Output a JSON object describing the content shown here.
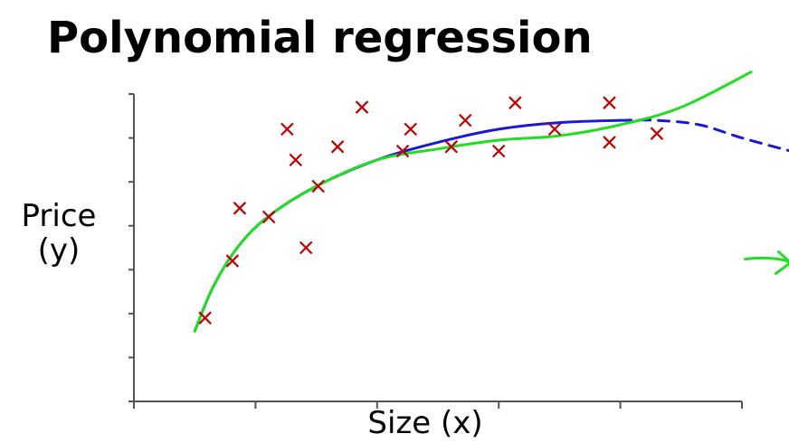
{
  "chart_data": {
    "type": "scatter",
    "title": "Polynomial regression",
    "xlabel": "Size (x)",
    "ylabel": [
      "Price",
      "(y)"
    ],
    "xlim": [
      0,
      10
    ],
    "ylim": [
      0,
      7
    ],
    "grid": false,
    "x_ticks": [
      0,
      2,
      4,
      6,
      8,
      10
    ],
    "y_ticks": [
      0,
      1,
      2,
      3,
      4,
      5,
      6,
      7
    ],
    "points": [
      {
        "x": 1.17,
        "y": 1.9
      },
      {
        "x": 1.62,
        "y": 3.2
      },
      {
        "x": 1.74,
        "y": 4.4
      },
      {
        "x": 2.22,
        "y": 4.2
      },
      {
        "x": 2.52,
        "y": 6.2
      },
      {
        "x": 2.66,
        "y": 5.5
      },
      {
        "x": 2.83,
        "y": 3.5
      },
      {
        "x": 3.03,
        "y": 4.9
      },
      {
        "x": 3.35,
        "y": 5.8
      },
      {
        "x": 3.75,
        "y": 6.7
      },
      {
        "x": 4.42,
        "y": 5.7
      },
      {
        "x": 4.55,
        "y": 6.2
      },
      {
        "x": 5.22,
        "y": 5.8
      },
      {
        "x": 5.45,
        "y": 6.4
      },
      {
        "x": 6.0,
        "y": 5.7
      },
      {
        "x": 6.27,
        "y": 6.8
      },
      {
        "x": 6.92,
        "y": 6.2
      },
      {
        "x": 7.82,
        "y": 5.9
      },
      {
        "x": 7.82,
        "y": 6.8
      },
      {
        "x": 8.6,
        "y": 6.1
      }
    ],
    "series": [
      {
        "style": "solid",
        "color": "#1a1ad6",
        "points": [
          [
            1.0,
            1.6
          ],
          [
            1.3,
            2.6
          ],
          [
            1.7,
            3.5
          ],
          [
            2.2,
            4.2
          ],
          [
            3.0,
            4.9
          ],
          [
            4.0,
            5.5
          ],
          [
            5.0,
            5.9
          ],
          [
            6.0,
            6.2
          ],
          [
            7.0,
            6.35
          ],
          [
            8.0,
            6.4
          ]
        ]
      },
      {
        "style": "dashed",
        "color": "#1a1ad6",
        "points": [
          [
            8.0,
            6.4
          ],
          [
            8.6,
            6.4
          ],
          [
            9.3,
            6.3
          ],
          [
            10.0,
            6.0
          ],
          [
            10.8,
            5.7
          ]
        ]
      },
      {
        "style": "solid",
        "color": "#22dd22",
        "points": [
          [
            1.0,
            1.6
          ],
          [
            1.3,
            2.6
          ],
          [
            1.7,
            3.5
          ],
          [
            2.2,
            4.2
          ],
          [
            3.0,
            4.9
          ],
          [
            4.0,
            5.5
          ],
          [
            5.0,
            5.75
          ],
          [
            6.0,
            5.95
          ],
          [
            7.0,
            6.05
          ],
          [
            8.0,
            6.3
          ],
          [
            9.0,
            6.7
          ],
          [
            10.15,
            7.5
          ]
        ]
      }
    ],
    "annotations": [
      {
        "type": "arrow",
        "color": "#22dd22",
        "x": 10.35,
        "y": 3.2
      }
    ],
    "colors": {
      "points": "#c00000",
      "quadratic_fit": "#1a1ad6",
      "cubic_fit": "#22dd22",
      "axes": "#555555"
    }
  }
}
